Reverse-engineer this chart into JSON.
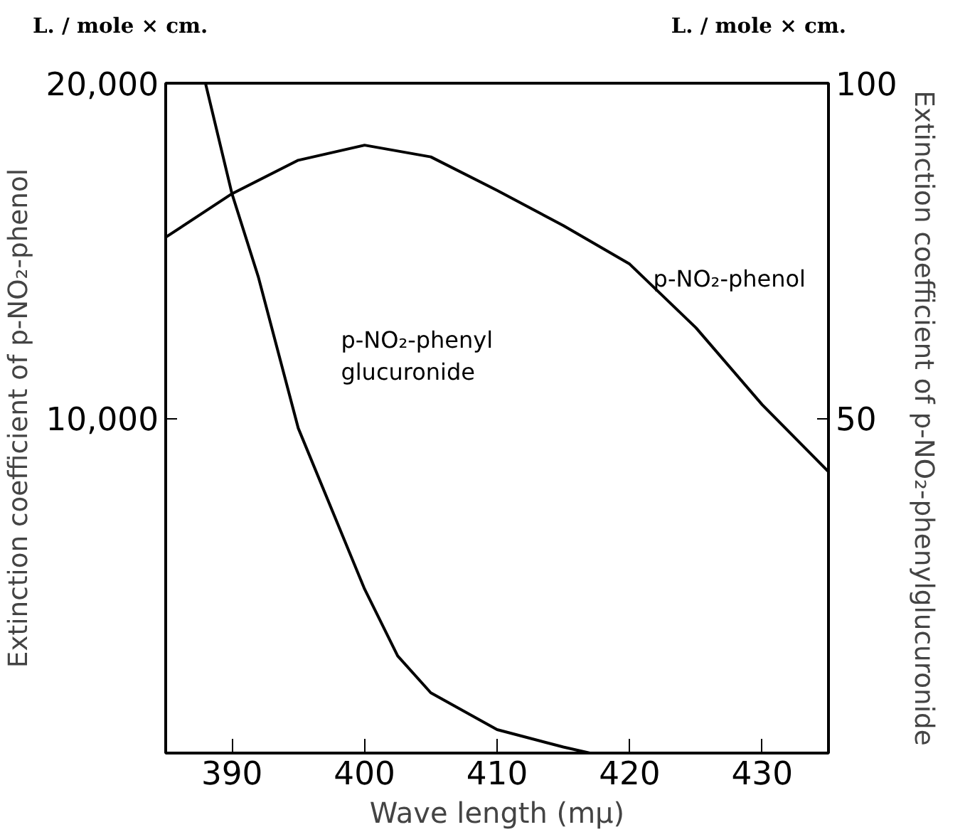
{
  "chart_data": {
    "type": "line",
    "xlabel": "Wave length (mμ)",
    "ylabel": "Extinction coefficient of p-NO₂-phenol",
    "y2label": "Extinction coefficient of p-NO₂-phenylglucuronide",
    "annotations": [
      "L. / mole × cm.",
      "L. / mole × cm."
    ],
    "xlim": [
      385,
      435
    ],
    "xticks": [
      390,
      400,
      410,
      420,
      430
    ],
    "ylim": [
      0,
      20000
    ],
    "yticks": [
      {
        "value": 10000,
        "label": "10,000"
      },
      {
        "value": 20000,
        "label": "20,000"
      }
    ],
    "y2lim": [
      0,
      100
    ],
    "y2ticks": [
      50,
      100
    ],
    "grid": false,
    "series": [
      {
        "name": "p-NO₂-phenol",
        "color": "#000000",
        "x": [
          385,
          390,
          395,
          400,
          405,
          410,
          415,
          420,
          425,
          430,
          435
        ],
        "values": [
          15400,
          16700,
          17700,
          18150,
          17800,
          16800,
          15750,
          14600,
          12700,
          10400,
          8400
        ]
      },
      {
        "name": "p-NO₂-phenyl\nglucuronide",
        "color": "#000000",
        "axis": "y2",
        "x": [
          388,
          390,
          392,
          395,
          400,
          402.5,
          405,
          410,
          415,
          417
        ],
        "values": [
          100,
          83.5,
          71,
          48.5,
          24.5,
          14.5,
          9,
          3.5,
          0.9,
          0
        ]
      }
    ]
  }
}
